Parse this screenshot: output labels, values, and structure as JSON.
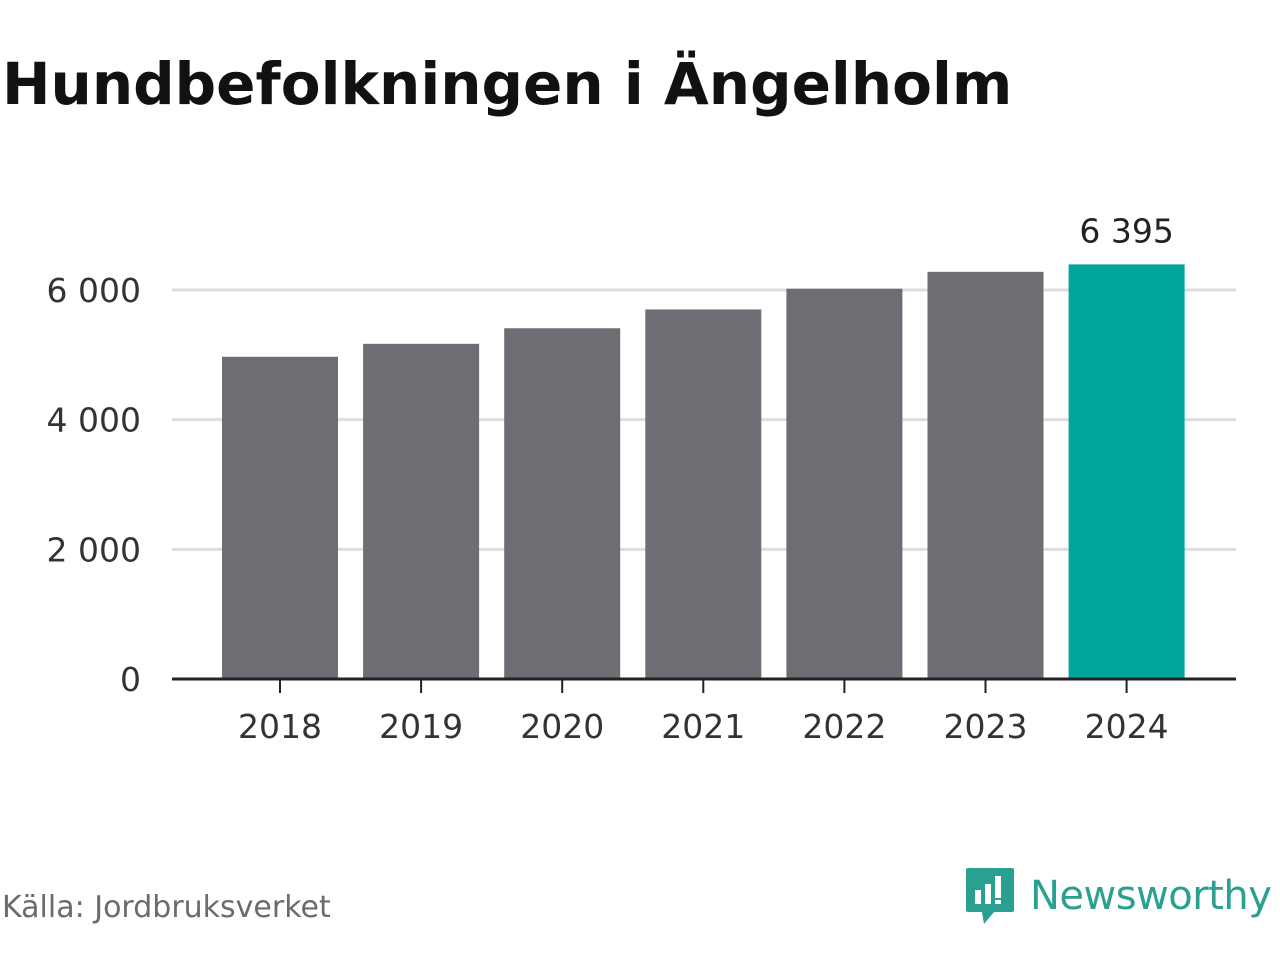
{
  "title": "Hundbefolkningen i Ängelholm",
  "source": "Källa: Jordbruksverket",
  "brand": {
    "name": "Newsworthy",
    "icon": "newsworthy-logo-icon",
    "color": "#2aa090"
  },
  "chart_data": {
    "type": "bar",
    "title": "Hundbefolkningen i Ängelholm",
    "xlabel": "",
    "ylabel": "",
    "categories": [
      "2018",
      "2019",
      "2020",
      "2021",
      "2022",
      "2023",
      "2024"
    ],
    "values": [
      4970,
      5170,
      5410,
      5700,
      6020,
      6280,
      6395
    ],
    "ylim": [
      0,
      6600
    ],
    "yticks": [
      0,
      2000,
      4000,
      6000
    ],
    "ytick_labels": [
      "0",
      "2 000",
      "4 000",
      "6 000"
    ],
    "highlight_index": 6,
    "highlight_label": "6 395",
    "colors": {
      "bar": "#6e6d73",
      "highlight": "#00a59b",
      "grid": "#dddddd",
      "axis": "#222222"
    },
    "grid": true,
    "legend": "none"
  }
}
